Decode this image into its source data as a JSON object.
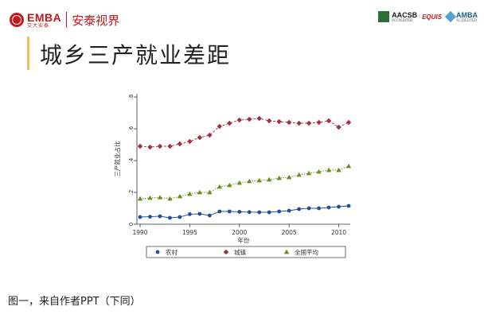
{
  "header": {
    "emba_logo": "EMBA",
    "emba_logo_sub": "交大安泰",
    "brand_name": "安泰视界",
    "accreditations": [
      {
        "name": "AACSB",
        "sub": "ACCREDITED",
        "color": "#2d6e3a",
        "icon": "aacsb-square-icon"
      },
      {
        "name": "EQUIS",
        "color": "#c8161d",
        "icon": "equis-swoosh-icon"
      },
      {
        "name": "AMBA",
        "sub": "ACCREDITED",
        "color": "#1a5d8a",
        "icon": "amba-gem-icon"
      }
    ]
  },
  "slide": {
    "title": "城乡三产就业差距"
  },
  "caption": "图一，来自作者PPT（下同）",
  "colors": {
    "brand_red": "#c8161d",
    "accent_gold": "#f0c05a"
  },
  "chart_data": {
    "type": "line",
    "title": "",
    "xlabel": "年份",
    "ylabel": "三产就业占比",
    "xlim": [
      1990,
      2011
    ],
    "ylim": [
      0,
      0.8
    ],
    "x_ticks": [
      1990,
      1995,
      2000,
      2005,
      2010
    ],
    "y_ticks": [
      "0",
      ".2",
      ".4",
      ".6",
      ".8"
    ],
    "grid": false,
    "legend_position": "bottom",
    "x": [
      1990,
      1991,
      1992,
      1993,
      1994,
      1995,
      1996,
      1997,
      1998,
      1999,
      2000,
      2001,
      2002,
      2003,
      2004,
      2005,
      2006,
      2007,
      2008,
      2009,
      2010,
      2011
    ],
    "series": [
      {
        "name": "农村",
        "marker": "circle",
        "color": "#1f4e9c",
        "values": [
          0.045,
          0.047,
          0.05,
          0.04,
          0.045,
          0.063,
          0.065,
          0.055,
          0.08,
          0.08,
          0.078,
          0.076,
          0.075,
          0.075,
          0.08,
          0.085,
          0.095,
          0.1,
          0.1,
          0.105,
          0.11,
          0.115
        ]
      },
      {
        "name": "城镇",
        "marker": "diamond",
        "color": "#a23040",
        "values": [
          0.49,
          0.485,
          0.49,
          0.49,
          0.505,
          0.52,
          0.545,
          0.56,
          0.615,
          0.635,
          0.655,
          0.66,
          0.665,
          0.65,
          0.645,
          0.64,
          0.635,
          0.635,
          0.64,
          0.65,
          0.61,
          0.64
        ]
      },
      {
        "name": "全国平均",
        "marker": "triangle",
        "color": "#6b8e23",
        "values": [
          0.16,
          0.165,
          0.168,
          0.16,
          0.175,
          0.19,
          0.2,
          0.2,
          0.235,
          0.245,
          0.26,
          0.27,
          0.275,
          0.28,
          0.29,
          0.295,
          0.31,
          0.32,
          0.33,
          0.34,
          0.34,
          0.365
        ]
      }
    ]
  }
}
